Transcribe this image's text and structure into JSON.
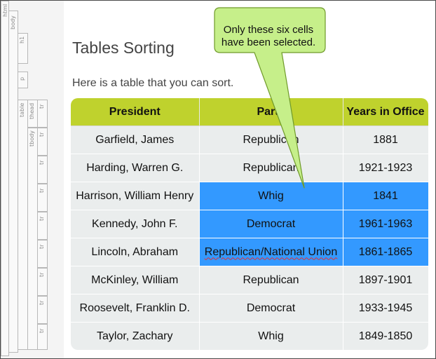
{
  "page": {
    "title": "Tables Sorting",
    "intro": "Here is a table that you can sort."
  },
  "tags": {
    "html": "html",
    "body": "body",
    "h1": "h1",
    "p": "p",
    "table": "table",
    "thead": "thead",
    "tbody": "tbody",
    "tr": "tr"
  },
  "table": {
    "headers": [
      "President",
      "Party",
      "Years in Office"
    ],
    "rows": [
      {
        "president": "Garfield, James",
        "party": "Republican",
        "years": "1881"
      },
      {
        "president": "Harding, Warren G.",
        "party": "Republican",
        "years": "1921-1923"
      },
      {
        "president": "Harrison, William Henry",
        "party": "Whig",
        "years": "1841"
      },
      {
        "president": "Kennedy, John F.",
        "party": "Democrat",
        "years": "1961-1963"
      },
      {
        "president": "Lincoln, Abraham",
        "party": "Republican/National Union",
        "years": "1861-1865"
      },
      {
        "president": "McKinley, William",
        "party": "Republican",
        "years": "1897-1901"
      },
      {
        "president": "Roosevelt, Franklin D.",
        "party": "Democrat",
        "years": "1933-1945"
      },
      {
        "president": "Taylor, Zachary",
        "party": "Whig",
        "years": "1849-1850"
      }
    ]
  },
  "callout": {
    "text": "Only these six cells have been selected."
  },
  "colors": {
    "header": "#bfd22d",
    "cell": "#eaeded",
    "selection": "#3399ff",
    "callout_fill": "#c6ef8a",
    "callout_stroke": "#6f9a2a"
  }
}
